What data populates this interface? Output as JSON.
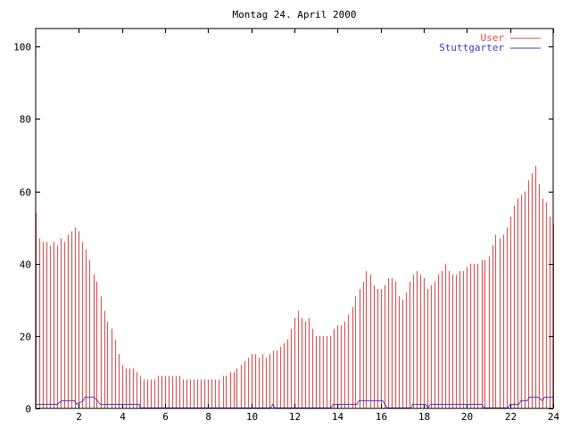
{
  "chart_data": {
    "type": "bar",
    "title": "Montag 24. April 2000",
    "xlabel": "",
    "ylabel": "",
    "xlim": [
      0,
      24
    ],
    "ylim": [
      0,
      105
    ],
    "xticks": [
      2,
      4,
      6,
      8,
      10,
      12,
      14,
      16,
      18,
      20,
      22,
      24
    ],
    "yticks": [
      0,
      20,
      40,
      60,
      80,
      100
    ],
    "grid": false,
    "legend": "top-right",
    "colors": {
      "user": "#e05050",
      "stuttgarter": "#4040cc",
      "axis": "#000000"
    },
    "series": [
      {
        "name": "User",
        "style": "impulses",
        "points": [
          [
            0.0,
            54
          ],
          [
            0.17,
            47
          ],
          [
            0.33,
            46
          ],
          [
            0.5,
            46
          ],
          [
            0.67,
            45
          ],
          [
            0.83,
            46
          ],
          [
            1.0,
            45
          ],
          [
            1.17,
            47
          ],
          [
            1.33,
            46
          ],
          [
            1.5,
            48
          ],
          [
            1.67,
            49
          ],
          [
            1.83,
            50
          ],
          [
            2.0,
            49
          ],
          [
            2.17,
            46
          ],
          [
            2.33,
            44
          ],
          [
            2.5,
            41
          ],
          [
            2.67,
            37
          ],
          [
            2.83,
            35
          ],
          [
            3.0,
            31
          ],
          [
            3.17,
            27
          ],
          [
            3.33,
            24
          ],
          [
            3.5,
            22
          ],
          [
            3.67,
            19
          ],
          [
            3.83,
            15
          ],
          [
            4.0,
            12
          ],
          [
            4.17,
            11
          ],
          [
            4.33,
            11
          ],
          [
            4.5,
            11
          ],
          [
            4.67,
            10
          ],
          [
            4.83,
            9
          ],
          [
            5.0,
            8
          ],
          [
            5.17,
            8
          ],
          [
            5.33,
            8
          ],
          [
            5.5,
            8
          ],
          [
            5.67,
            9
          ],
          [
            5.83,
            9
          ],
          [
            6.0,
            9
          ],
          [
            6.17,
            9
          ],
          [
            6.33,
            9
          ],
          [
            6.5,
            9
          ],
          [
            6.67,
            9
          ],
          [
            6.83,
            8
          ],
          [
            7.0,
            8
          ],
          [
            7.17,
            8
          ],
          [
            7.33,
            8
          ],
          [
            7.5,
            8
          ],
          [
            7.67,
            8
          ],
          [
            7.83,
            8
          ],
          [
            8.0,
            8
          ],
          [
            8.17,
            8
          ],
          [
            8.33,
            8
          ],
          [
            8.5,
            8
          ],
          [
            8.67,
            9
          ],
          [
            8.83,
            9
          ],
          [
            9.0,
            10
          ],
          [
            9.17,
            10
          ],
          [
            9.33,
            11
          ],
          [
            9.5,
            12
          ],
          [
            9.67,
            13
          ],
          [
            9.83,
            14
          ],
          [
            10.0,
            15
          ],
          [
            10.17,
            15
          ],
          [
            10.33,
            14
          ],
          [
            10.5,
            15
          ],
          [
            10.67,
            14
          ],
          [
            10.83,
            15
          ],
          [
            11.0,
            16
          ],
          [
            11.17,
            16
          ],
          [
            11.33,
            17
          ],
          [
            11.5,
            18
          ],
          [
            11.67,
            19
          ],
          [
            11.83,
            22
          ],
          [
            12.0,
            25
          ],
          [
            12.17,
            27
          ],
          [
            12.33,
            25
          ],
          [
            12.5,
            24
          ],
          [
            12.67,
            25
          ],
          [
            12.83,
            22
          ],
          [
            13.0,
            20
          ],
          [
            13.17,
            20
          ],
          [
            13.33,
            20
          ],
          [
            13.5,
            20
          ],
          [
            13.67,
            20
          ],
          [
            13.83,
            22
          ],
          [
            14.0,
            23
          ],
          [
            14.17,
            23
          ],
          [
            14.33,
            24
          ],
          [
            14.5,
            26
          ],
          [
            14.67,
            28
          ],
          [
            14.83,
            31
          ],
          [
            15.0,
            33
          ],
          [
            15.17,
            35
          ],
          [
            15.33,
            38
          ],
          [
            15.5,
            37
          ],
          [
            15.67,
            34
          ],
          [
            15.83,
            33
          ],
          [
            16.0,
            33
          ],
          [
            16.17,
            34
          ],
          [
            16.33,
            36
          ],
          [
            16.5,
            36
          ],
          [
            16.67,
            35
          ],
          [
            16.83,
            31
          ],
          [
            17.0,
            30
          ],
          [
            17.17,
            32
          ],
          [
            17.33,
            35
          ],
          [
            17.5,
            37
          ],
          [
            17.67,
            38
          ],
          [
            17.83,
            37
          ],
          [
            18.0,
            36
          ],
          [
            18.17,
            33
          ],
          [
            18.33,
            34
          ],
          [
            18.5,
            35
          ],
          [
            18.67,
            37
          ],
          [
            18.83,
            38
          ],
          [
            19.0,
            40
          ],
          [
            19.17,
            38
          ],
          [
            19.33,
            37
          ],
          [
            19.5,
            37
          ],
          [
            19.67,
            38
          ],
          [
            19.83,
            38
          ],
          [
            20.0,
            39
          ],
          [
            20.17,
            40
          ],
          [
            20.33,
            40
          ],
          [
            20.5,
            40
          ],
          [
            20.67,
            41
          ],
          [
            20.83,
            41
          ],
          [
            21.0,
            42
          ],
          [
            21.17,
            45
          ],
          [
            21.33,
            48
          ],
          [
            21.5,
            47
          ],
          [
            21.67,
            48
          ],
          [
            21.83,
            50
          ],
          [
            22.0,
            53
          ],
          [
            22.17,
            56
          ],
          [
            22.33,
            58
          ],
          [
            22.5,
            59
          ],
          [
            22.67,
            60
          ],
          [
            22.83,
            63
          ],
          [
            23.0,
            65
          ],
          [
            23.17,
            67
          ],
          [
            23.33,
            62
          ],
          [
            23.5,
            58
          ],
          [
            23.67,
            57
          ],
          [
            23.83,
            53
          ],
          [
            24.0,
            51
          ]
        ]
      },
      {
        "name": "Stuttgarter",
        "style": "lines",
        "points": [
          [
            0.0,
            1
          ],
          [
            1.0,
            1
          ],
          [
            1.2,
            2
          ],
          [
            1.8,
            2
          ],
          [
            1.9,
            1
          ],
          [
            2.2,
            2
          ],
          [
            2.3,
            3
          ],
          [
            2.7,
            3
          ],
          [
            3.0,
            1
          ],
          [
            4.8,
            1
          ],
          [
            4.85,
            0
          ],
          [
            10.9,
            0
          ],
          [
            11.0,
            1
          ],
          [
            11.1,
            0
          ],
          [
            13.7,
            0
          ],
          [
            13.8,
            1
          ],
          [
            14.9,
            1
          ],
          [
            15.0,
            2
          ],
          [
            16.1,
            2
          ],
          [
            16.3,
            0
          ],
          [
            17.4,
            0
          ],
          [
            17.5,
            1
          ],
          [
            18.1,
            1
          ],
          [
            18.2,
            0
          ],
          [
            18.3,
            1
          ],
          [
            20.7,
            1
          ],
          [
            20.8,
            0
          ],
          [
            21.9,
            0
          ],
          [
            22.0,
            1
          ],
          [
            22.4,
            1
          ],
          [
            22.5,
            2
          ],
          [
            22.8,
            2
          ],
          [
            22.9,
            3
          ],
          [
            23.3,
            3
          ],
          [
            23.5,
            2
          ],
          [
            23.6,
            3
          ],
          [
            24.0,
            3
          ]
        ]
      }
    ]
  }
}
